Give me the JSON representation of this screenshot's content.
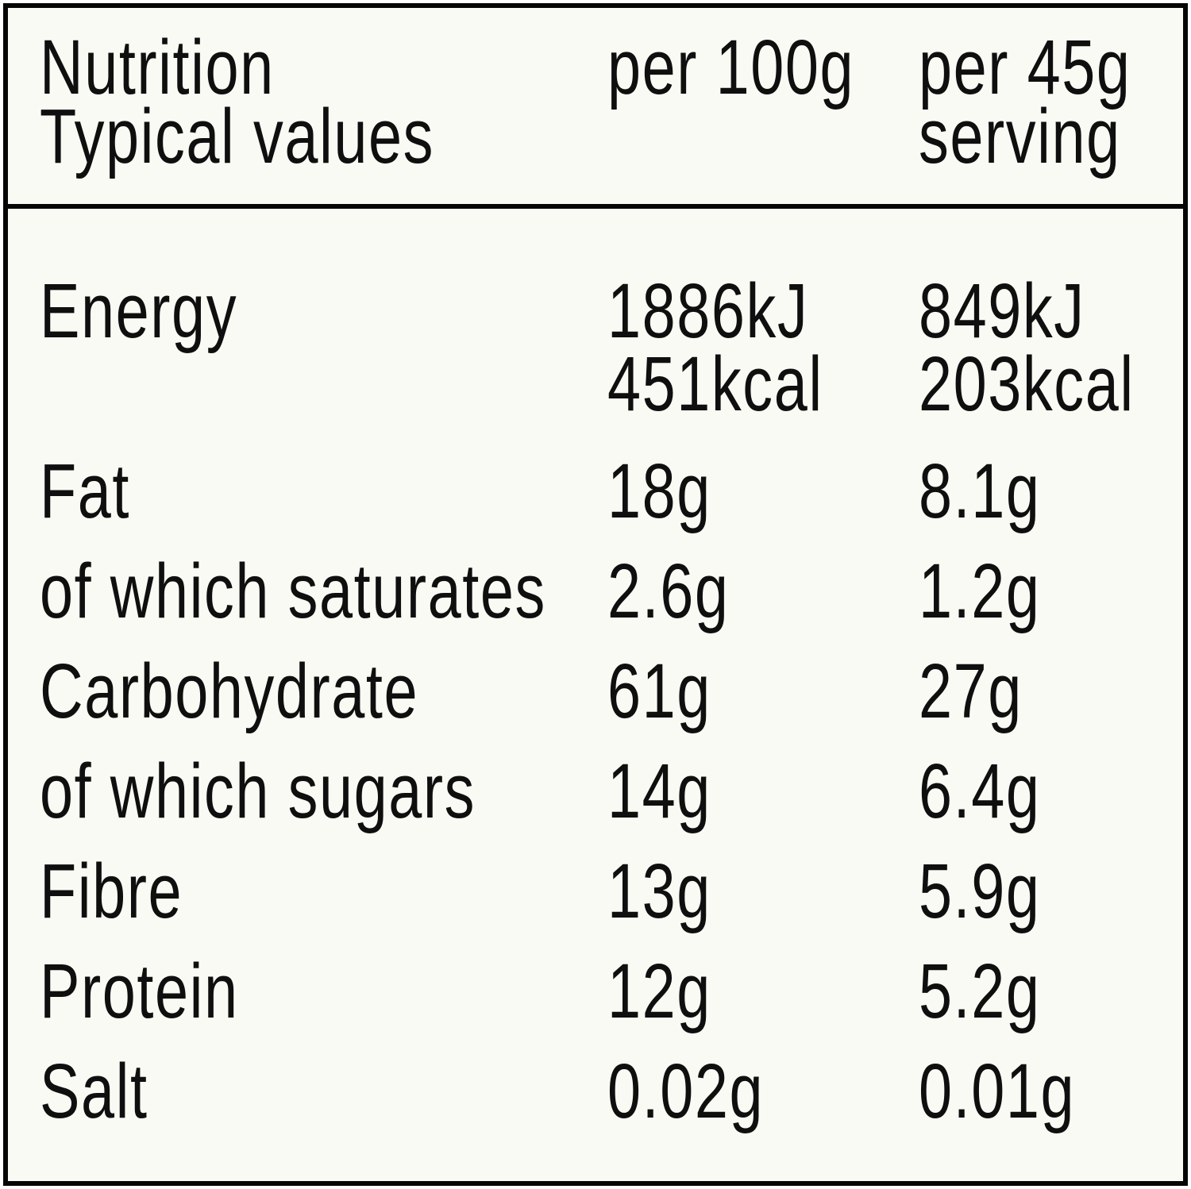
{
  "label": {
    "header": {
      "title_line1": "Nutrition",
      "title_line2": "Typical values",
      "per100_heading": "per 100g",
      "serving_heading_line1": "per 45g",
      "serving_heading_line2": "serving"
    },
    "rows": [
      {
        "name": "Energy",
        "per100g": "1886kJ",
        "per100g_2": "451kcal",
        "per_serving": "849kJ",
        "per_serving_2": "203kcal"
      },
      {
        "name": "Fat",
        "per100g": "18g",
        "per_serving": "8.1g"
      },
      {
        "name": "of which saturates",
        "per100g": "2.6g",
        "per_serving": "1.2g"
      },
      {
        "name": "Carbohydrate",
        "per100g": "61g",
        "per_serving": "27g"
      },
      {
        "name": "of which sugars",
        "per100g": "14g",
        "per_serving": "6.4g"
      },
      {
        "name": "Fibre",
        "per100g": "13g",
        "per_serving": "5.9g"
      },
      {
        "name": "Protein",
        "per100g": "12g",
        "per_serving": "5.2g"
      },
      {
        "name": "Salt",
        "per100g": "0.02g",
        "per_serving": "0.01g"
      }
    ],
    "colors": {
      "background": "#fafaf4",
      "text": "#0f0f0f",
      "border": "#060606"
    }
  }
}
